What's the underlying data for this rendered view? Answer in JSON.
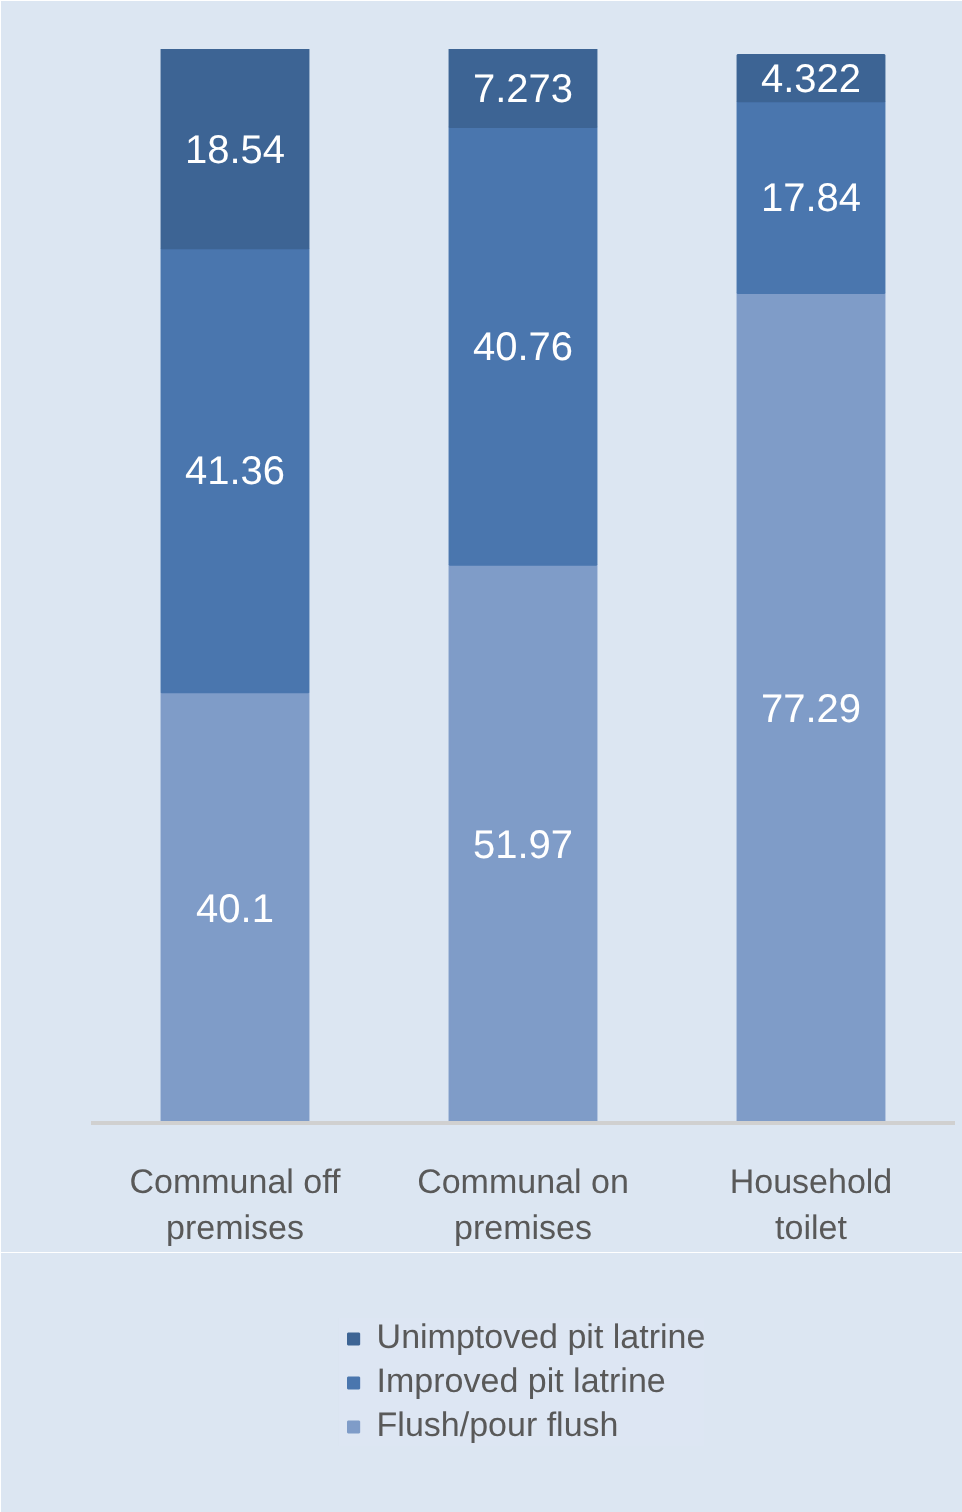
{
  "chart_data": {
    "type": "bar",
    "stacked": true,
    "data_labels": true,
    "legend": "bottom",
    "grid": false,
    "categories": [
      "Communal off premises",
      "Communal on premises",
      "Household toilet"
    ],
    "series": [
      {
        "name": "Flush/pour flush",
        "color": "#7f9cc8",
        "values": [
          40.1,
          51.97,
          77.29
        ]
      },
      {
        "name": "Improved pit latrine",
        "color": "#4a76ae",
        "values": [
          41.36,
          40.76,
          17.84
        ]
      },
      {
        "name": "Unimptoved pit latrine",
        "color": "#3d6494",
        "values": [
          18.54,
          7.273,
          4.322
        ]
      }
    ]
  }
}
